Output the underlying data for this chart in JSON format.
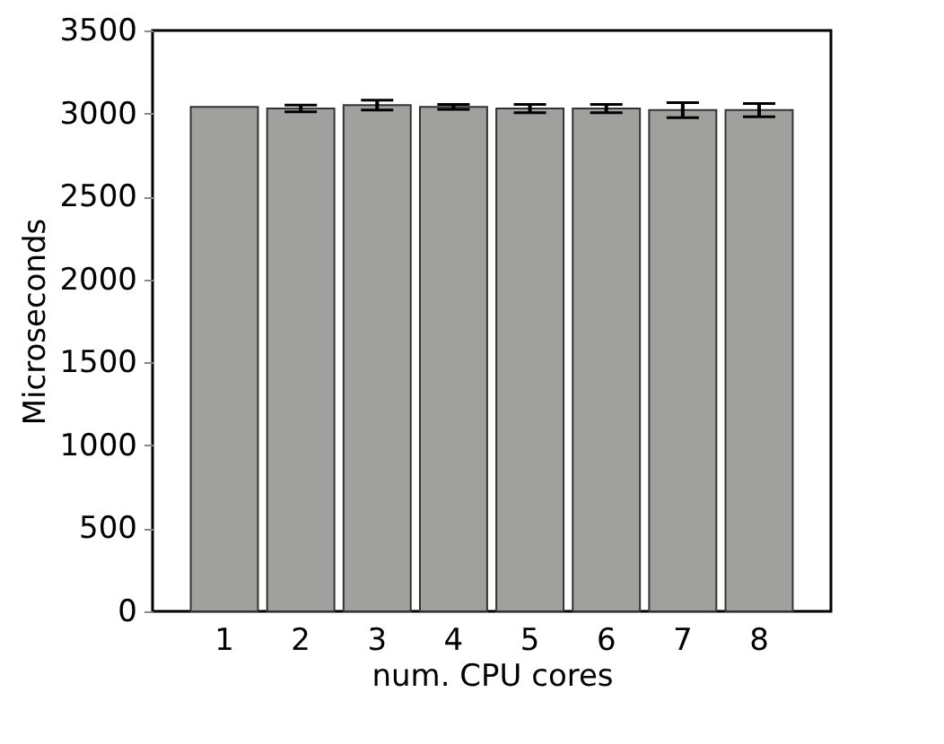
{
  "chart_data": {
    "type": "bar",
    "xlabel": "num. CPU cores",
    "ylabel": "Microseconds",
    "categories": [
      "1",
      "2",
      "3",
      "4",
      "5",
      "6",
      "7",
      "8"
    ],
    "series": [
      {
        "color": "#a0a09e",
        "values": [
          3040,
          3030,
          3050,
          3040,
          3030,
          3030,
          3020,
          3020
        ],
        "errors": [
          null,
          20,
          30,
          15,
          25,
          25,
          45,
          40
        ]
      }
    ],
    "ylim": [
      0,
      3500
    ],
    "yticks": [
      0,
      500,
      1000,
      1500,
      2000,
      2500,
      3000,
      3500
    ],
    "grid": false
  }
}
